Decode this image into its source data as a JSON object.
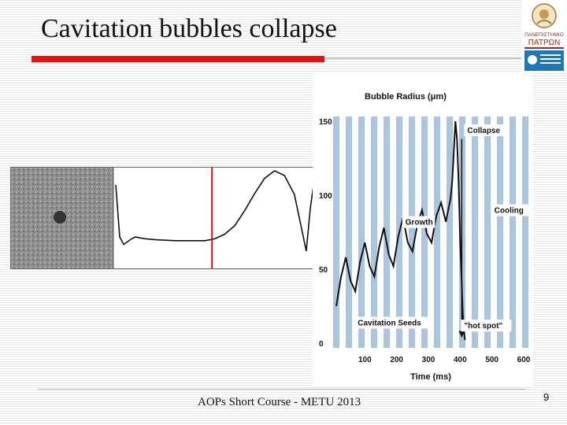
{
  "slide": {
    "title": "Cavitation bubbles collapse",
    "footer": "AOPs Short Course - METU 2013",
    "page_number": "9"
  },
  "logo": {
    "name": "university-logo",
    "lines": [
      "ΠΑΝΕΠΙΣΤΗΜΙΟ",
      "ΠΑΤΡΩΝ"
    ]
  },
  "colors": {
    "accent_red": "#e8130f",
    "stripe_blue": "#8fb2d4",
    "wave_line": "#111111",
    "marker_line": "#cc1111"
  },
  "simulation": {
    "wave_x": [
      0,
      0.02,
      0.04,
      0.06,
      0.08,
      0.1,
      0.12,
      0.15,
      0.2,
      0.3,
      0.45,
      0.5,
      0.55,
      0.6,
      0.65,
      0.7,
      0.75,
      0.8,
      0.85,
      0.9,
      0.93,
      0.96,
      0.98,
      1.0
    ],
    "wave_y": [
      0.85,
      0.3,
      0.22,
      0.25,
      0.28,
      0.3,
      0.29,
      0.28,
      0.27,
      0.26,
      0.26,
      0.28,
      0.33,
      0.42,
      0.58,
      0.76,
      0.92,
      1.0,
      0.95,
      0.75,
      0.45,
      0.15,
      0.6,
      0.9
    ],
    "marker_position": 0.485
  },
  "chart_data": {
    "type": "line",
    "title": "",
    "ylabel": "Bubble Radius (μm)",
    "xlabel": "Time (ms)",
    "xlim": [
      0,
      600
    ],
    "ylim": [
      0,
      150
    ],
    "x_ticks": [
      "100",
      "200",
      "300",
      "400",
      "500",
      "600"
    ],
    "y_ticks": [
      "0",
      "50",
      "100",
      "150"
    ],
    "series": [
      {
        "x": [
          10,
          25,
          40,
          55,
          70,
          85,
          100,
          115,
          130,
          145,
          160,
          175,
          190,
          205,
          220,
          235,
          250,
          265,
          280,
          295,
          310,
          325,
          340,
          355,
          370,
          375,
          380,
          385,
          390,
          395,
          400,
          405,
          408,
          412,
          415
        ],
        "y": [
          25,
          45,
          58,
          42,
          35,
          55,
          68,
          52,
          45,
          65,
          78,
          60,
          52,
          72,
          85,
          68,
          62,
          80,
          90,
          74,
          68,
          86,
          95,
          82,
          98,
          110,
          130,
          150,
          138,
          110,
          70,
          40,
          20,
          8,
          2
        ]
      }
    ],
    "annotations": [
      {
        "text": "Collapse",
        "x": 420,
        "y": 142
      },
      {
        "text": "Cooling",
        "x": 505,
        "y": 88
      },
      {
        "text": "Growth",
        "x": 225,
        "y": 80
      },
      {
        "text": "Cavitation Seeds",
        "x": 75,
        "y": 12
      },
      {
        "text": "\"hot spot\"",
        "x": 410,
        "y": 10
      }
    ]
  }
}
